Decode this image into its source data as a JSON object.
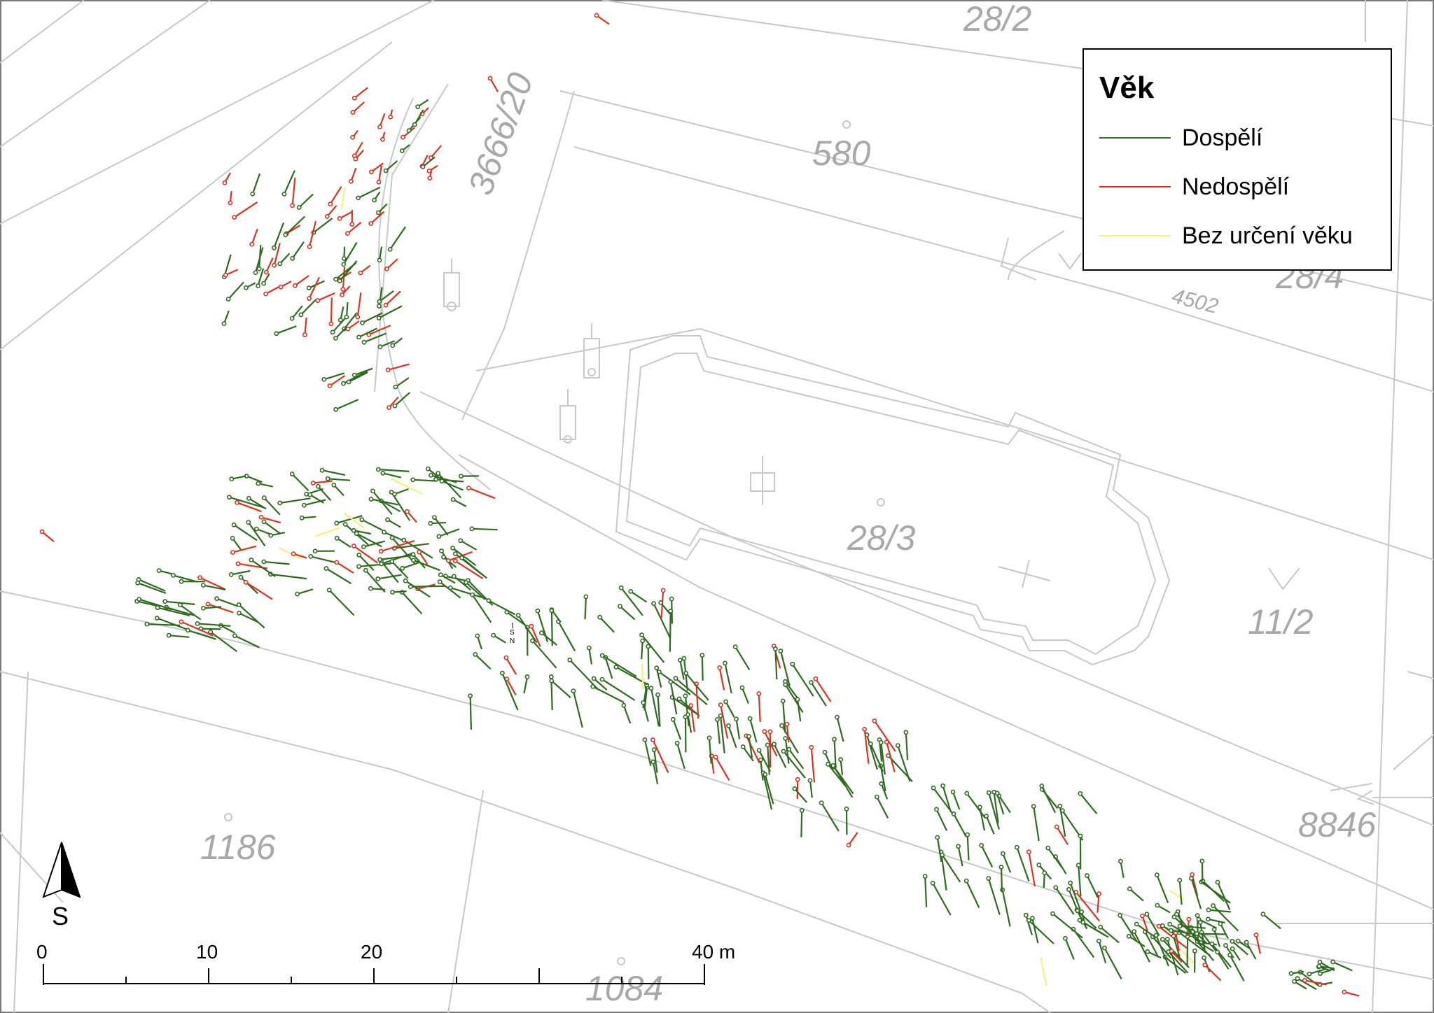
{
  "map": {
    "parcels": [
      "28/2",
      "580",
      "3666/20",
      "28/4",
      "4502",
      "28/3",
      "11/2",
      "8846",
      "1186",
      "1084"
    ],
    "north_arrow_label": "S",
    "north_arrow_small_label": "S\nN",
    "scale_bar": {
      "ticks": [
        "0",
        "10",
        "20",
        "40 m"
      ],
      "colors": {
        "bar": "#000000"
      }
    }
  },
  "legend": {
    "title": "Věk",
    "items": [
      {
        "label": "Dospělí",
        "color": "#2e6b1f"
      },
      {
        "label": "Nedospělí",
        "color": "#e0301e"
      },
      {
        "label": "Bez určení věku",
        "color": "#f5f27a"
      }
    ]
  },
  "colors": {
    "boundary": "#c8c8c8",
    "parcel_text": "#a8a8a8"
  },
  "icons": [
    "north-arrow-icon",
    "cross-icon",
    "wayside-cross-icon"
  ]
}
